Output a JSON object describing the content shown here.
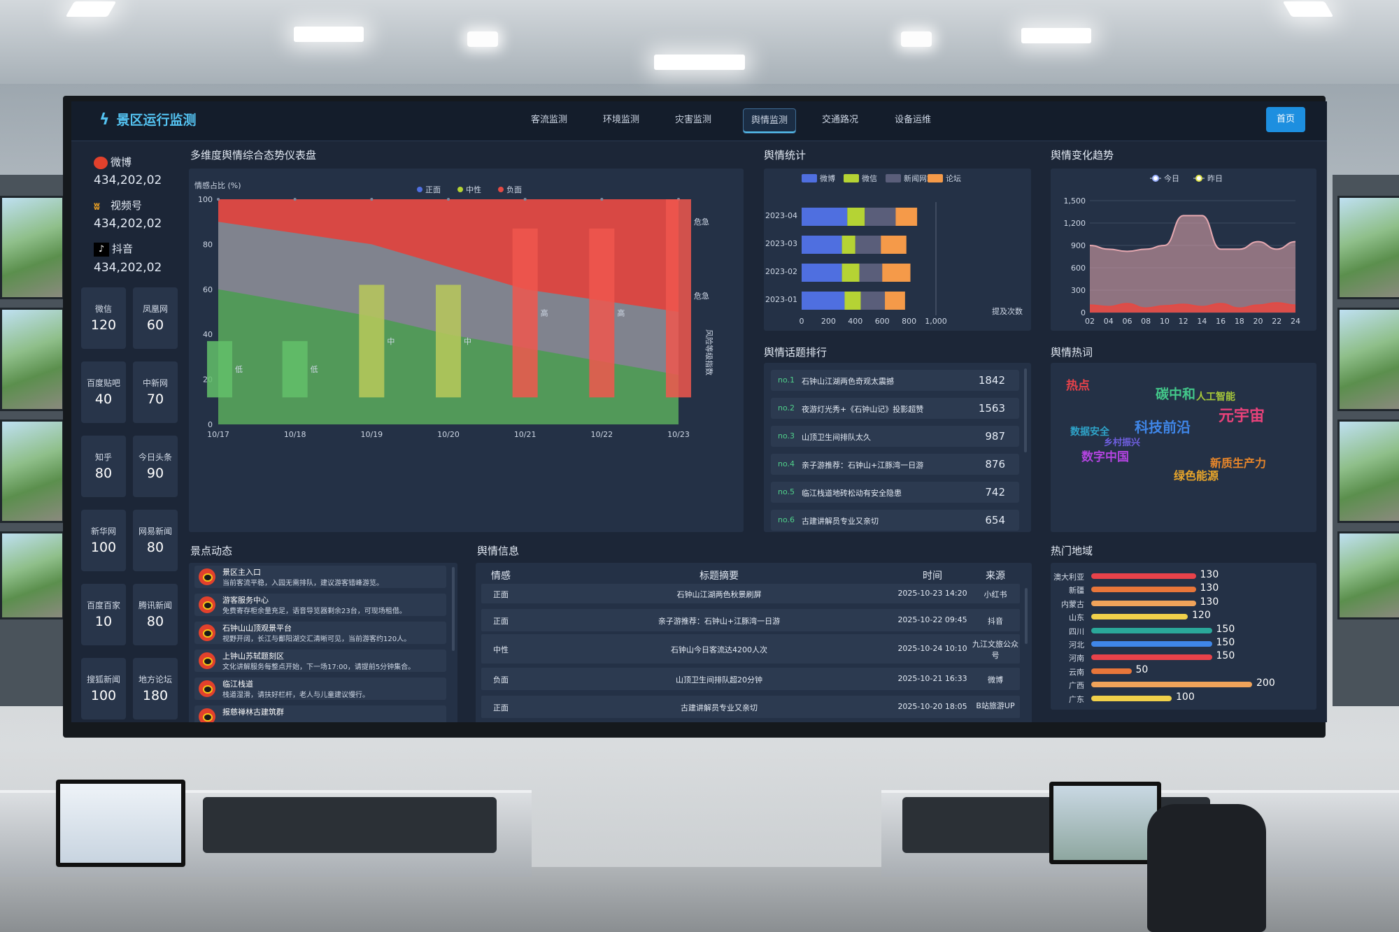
{
  "app": {
    "title": "景区运行监测",
    "home_button": "首页"
  },
  "nav": [
    "客流监测",
    "环境监测",
    "灾害监测",
    "舆情监测",
    "交通路况",
    "设备运维"
  ],
  "nav_active": "舆情监测",
  "social": [
    {
      "name": "微博",
      "value": "434,202,02",
      "icon": "weibo-icon"
    },
    {
      "name": "视频号",
      "value": "434,202,02",
      "icon": "channels-icon"
    },
    {
      "name": "抖音",
      "value": "434,202,02",
      "icon": "douyin-icon"
    }
  ],
  "tiles": [
    {
      "label": "微信",
      "value": "120"
    },
    {
      "label": "凤凰网",
      "value": "60"
    },
    {
      "label": "百度贴吧",
      "value": "40"
    },
    {
      "label": "中新网",
      "value": "70"
    },
    {
      "label": "知乎",
      "value": "80"
    },
    {
      "label": "今日头条",
      "value": "90"
    },
    {
      "label": "新华网",
      "value": "100"
    },
    {
      "label": "网易新闻",
      "value": "80"
    },
    {
      "label": "百度百家",
      "value": "10"
    },
    {
      "label": "腾讯新闻",
      "value": "80"
    },
    {
      "label": "搜狐新闻",
      "value": "100"
    },
    {
      "label": "地方论坛",
      "value": "180"
    }
  ],
  "panels": {
    "dashboard": "多维度舆情综合态势仪表盘",
    "stats": "舆情统计",
    "trend": "舆情变化趋势",
    "topics": "舆情话题排行",
    "hotwords": "舆情热词",
    "dynamics": "景点动态",
    "info": "舆情信息",
    "regions": "热门地域"
  },
  "chart_data": [
    {
      "type": "area",
      "title": "多维度舆情综合态势仪表盘",
      "ylabel": "情感占比 (%)",
      "right_label": "风险等级指数",
      "legend": [
        "正面",
        "中性",
        "负面"
      ],
      "categories": [
        "10/17",
        "10/18",
        "10/19",
        "10/20",
        "10/21",
        "10/22",
        "10/23"
      ],
      "ylim": [
        0,
        100
      ],
      "y_ticks": [
        0,
        20,
        40,
        60,
        80,
        100
      ],
      "series": [
        {
          "name": "正面",
          "values": [
            60,
            54,
            48,
            40,
            34,
            28,
            22
          ],
          "color": "#4f9a56"
        },
        {
          "name": "中性",
          "values": [
            90,
            85,
            80,
            70,
            60,
            55,
            50
          ],
          "color": "#7b8792"
        },
        {
          "name": "负面",
          "values": [
            100,
            100,
            100,
            100,
            100,
            100,
            100
          ],
          "color": "#e34a44"
        }
      ],
      "risk_bars": [
        {
          "value": 37,
          "label": "低",
          "color": "#63c06a"
        },
        {
          "value": 37,
          "label": "低",
          "color": "#63c06a"
        },
        {
          "value": 62,
          "label": "中",
          "color": "#b9c95a"
        },
        {
          "value": 62,
          "label": "中",
          "color": "#b9c95a"
        },
        {
          "value": 87,
          "label": "高",
          "color": "#f0574d"
        },
        {
          "value": 87,
          "label": "高",
          "color": "#f0574d"
        },
        {
          "value": 100,
          "label": "危急",
          "color": "#f0574d"
        }
      ],
      "right_marks": [
        "危急",
        "危急"
      ]
    },
    {
      "type": "bar",
      "orientation": "horizontal-stacked",
      "categories": [
        "2023-04",
        "2023-03",
        "2023-02",
        "2023-01"
      ],
      "legend": [
        "微博",
        "微信",
        "新闻网站",
        "论坛"
      ],
      "xlim": [
        0,
        1000
      ],
      "x_ticks": [
        "0",
        "200",
        "400",
        "600",
        "800",
        "1,000"
      ],
      "xlabel": "提及次数",
      "series": [
        {
          "name": "微博",
          "values": [
            340,
            300,
            300,
            320
          ],
          "color": "#4f6fe0"
        },
        {
          "name": "微信",
          "values": [
            130,
            100,
            130,
            120
          ],
          "color": "#b5d334"
        },
        {
          "name": "新闻网站",
          "values": [
            230,
            190,
            170,
            180
          ],
          "color": "#5a5e7a"
        },
        {
          "name": "论坛",
          "values": [
            160,
            190,
            210,
            150
          ],
          "color": "#f59a49"
        }
      ]
    },
    {
      "type": "area",
      "legend": [
        "今日",
        "昨日"
      ],
      "x": [
        "02",
        "04",
        "06",
        "08",
        "10",
        "12",
        "14",
        "16",
        "18",
        "20",
        "22",
        "24"
      ],
      "ylim": [
        0,
        1500
      ],
      "y_ticks": [
        "0",
        "300",
        "600",
        "900",
        "1,200",
        "1,500"
      ],
      "series": [
        {
          "name": "今日",
          "values": [
            900,
            850,
            820,
            850,
            900,
            1300,
            1300,
            850,
            850,
            950,
            850,
            950
          ],
          "color": "#e7a9b1"
        },
        {
          "name": "昨日",
          "values": [
            100,
            80,
            120,
            60,
            90,
            110,
            80,
            120,
            60,
            100,
            130,
            100
          ],
          "color": "#e34a44"
        }
      ]
    }
  ],
  "topics": [
    {
      "no": "no.1",
      "title": "石钟山江湖两色奇观太震撼",
      "count": "1842"
    },
    {
      "no": "no.2",
      "title": "夜游灯光秀+《石钟山记》投影超赞",
      "count": "1563"
    },
    {
      "no": "no.3",
      "title": "山顶卫生间排队太久",
      "count": "987"
    },
    {
      "no": "no.4",
      "title": "亲子游推荐：石钟山+江豚湾一日游",
      "count": "876"
    },
    {
      "no": "no.5",
      "title": "临江栈道地砖松动有安全隐患",
      "count": "742"
    },
    {
      "no": "no.6",
      "title": "古建讲解员专业又亲切",
      "count": "654"
    }
  ],
  "hotwords": [
    {
      "text": "热点",
      "color": "#e8424a"
    },
    {
      "text": "碳中和",
      "color": "#43c78a"
    },
    {
      "text": "人工智能",
      "color": "#a7c83a"
    },
    {
      "text": "元宇宙",
      "color": "#e8427a"
    },
    {
      "text": "科技前沿",
      "color": "#3f86e8"
    },
    {
      "text": "数据安全",
      "color": "#2fa3c8"
    },
    {
      "text": "乡村振兴",
      "color": "#6f5fe0"
    },
    {
      "text": "数字中国",
      "color": "#b344e0"
    },
    {
      "text": "新质生产力",
      "color": "#e8862a"
    },
    {
      "text": "绿色能源",
      "color": "#e8a52a"
    }
  ],
  "regions": [
    {
      "name": "澳大利亚",
      "value": 130,
      "color": "#e8424a"
    },
    {
      "name": "新疆",
      "value": 130,
      "color": "#e8763a"
    },
    {
      "name": "内蒙古",
      "value": 130,
      "color": "#f0a35a"
    },
    {
      "name": "山东",
      "value": 120,
      "color": "#f0d04a"
    },
    {
      "name": "四川",
      "value": 150,
      "color": "#2aa89a"
    },
    {
      "name": "河北",
      "value": 150,
      "color": "#3f86e8"
    },
    {
      "name": "河南",
      "value": 150,
      "color": "#e8424a"
    },
    {
      "name": "云南",
      "value": 50,
      "color": "#e8763a"
    },
    {
      "name": "广西",
      "value": 200,
      "color": "#f0a35a"
    },
    {
      "name": "广东",
      "value": 100,
      "color": "#f0d04a"
    }
  ],
  "dynamics": [
    {
      "title": "景区主入口",
      "desc": "当前客流平稳，入园无需排队，建议游客错峰游览。"
    },
    {
      "title": "游客服务中心",
      "desc": "免费寄存柜余量充足，语音导览器剩余23台，可现场租借。"
    },
    {
      "title": "石钟山山顶观景平台",
      "desc": "视野开阔，长江与鄱阳湖交汇清晰可见，当前游客约120人。"
    },
    {
      "title": "上钟山苏轼题刻区",
      "desc": "文化讲解服务每整点开始，下一场17:00，请提前5分钟集合。"
    },
    {
      "title": "临江栈道",
      "desc": "栈道湿滑，请扶好栏杆，老人与儿童建议慢行。"
    },
    {
      "title": "报慈禅林古建筑群",
      "desc": ""
    }
  ],
  "info_table": {
    "headers": [
      "情感",
      "标题摘要",
      "时间",
      "来源"
    ],
    "rows": [
      [
        "正面",
        "石钟山江湖两色秋景刷屏",
        "2025-10-23 14:20",
        "小红书"
      ],
      [
        "正面",
        "亲子游推荐：石钟山+江豚湾一日游",
        "2025-10-22 09:45",
        "抖音"
      ],
      [
        "中性",
        "石钟山今日客流达4200人次",
        "2025-10-24 10:10",
        "九江文旅公众号"
      ],
      [
        "负面",
        "山顶卫生间排队超20分钟",
        "2025-10-21 16:33",
        "微博"
      ],
      [
        "正面",
        "古建讲解员专业又亲切",
        "2025-10-20 18:05",
        "B站旅游UP"
      ]
    ]
  }
}
